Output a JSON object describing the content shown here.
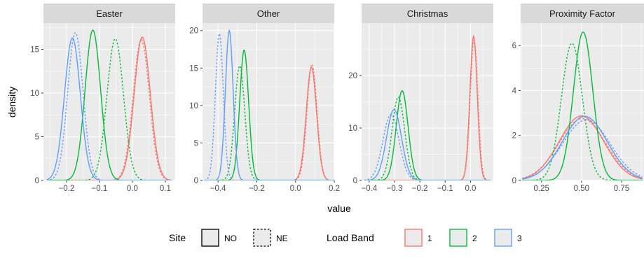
{
  "chart_data": {
    "type": "line",
    "subtype": "density",
    "xlabel": "value",
    "ylabel": "density",
    "legend_position": "bottom",
    "legend": {
      "site_title": "Site",
      "site_items": [
        {
          "label": "NO",
          "linetype": "solid"
        },
        {
          "label": "NE",
          "linetype": "dotted"
        }
      ],
      "band_title": "Load Band",
      "band_items": [
        {
          "label": "1",
          "color": "#F8766D"
        },
        {
          "label": "2",
          "color": "#00BA38"
        },
        {
          "label": "3",
          "color": "#619CFF"
        }
      ]
    },
    "colors": {
      "1": "#F8766D",
      "2": "#00BA38",
      "3": "#619CFF",
      "panel": "#EBEBEB",
      "strip": "#D9D9D9",
      "grid": "#FFFFFF"
    },
    "panels": [
      {
        "title": "Easter",
        "xlim": [
          -0.27,
          0.13
        ],
        "ylim": [
          0,
          18
        ],
        "xticks": [
          -0.2,
          -0.1,
          0.0,
          0.1
        ],
        "xtick_labels": [
          "−0.2",
          "−0.1",
          "0.0",
          "0.1"
        ],
        "yticks": [
          0,
          5,
          10,
          15
        ],
        "ytick_labels": [
          "0",
          "5",
          "10",
          "15"
        ],
        "series": [
          {
            "band": "1",
            "site": "NO",
            "x": [
              -0.26,
              0.007,
              0.03,
              0.053,
              0.12
            ],
            "y": [
              0,
              0,
              16.4,
              0,
              0
            ],
            "sd": 0.0245
          },
          {
            "band": "1",
            "site": "NE",
            "x": [
              -0.26,
              0.004,
              0.027,
              0.05,
              0.12
            ],
            "y": [
              0,
              0,
              16.1,
              0,
              0
            ],
            "sd": 0.0245
          },
          {
            "band": "2",
            "site": "NO",
            "x": [
              -0.26,
              -0.143,
              -0.12,
              -0.097,
              0.12
            ],
            "y": [
              0,
              0,
              17.2,
              0,
              0
            ],
            "sd": 0.0235
          },
          {
            "band": "2",
            "site": "NE",
            "x": [
              -0.26,
              -0.076,
              -0.052,
              -0.028,
              0.12
            ],
            "y": [
              0,
              0,
              16.2,
              0,
              0
            ],
            "sd": 0.025
          },
          {
            "band": "3",
            "site": "NO",
            "x": [
              -0.26,
              -0.205,
              -0.182,
              -0.159,
              0.12
            ],
            "y": [
              0,
              0,
              16.3,
              0,
              0
            ],
            "sd": 0.024
          },
          {
            "band": "3",
            "site": "NE",
            "x": [
              -0.26,
              -0.196,
              -0.173,
              -0.15,
              0.12
            ],
            "y": [
              0,
              0,
              16.9,
              0,
              0
            ],
            "sd": 0.0232
          }
        ]
      },
      {
        "title": "Other",
        "xlim": [
          -0.48,
          0.2
        ],
        "ylim": [
          0,
          21
        ],
        "xticks": [
          -0.4,
          -0.2,
          0.0,
          0.2
        ],
        "xtick_labels": [
          "−0.4",
          "−0.2",
          "0.0",
          "0.2"
        ],
        "yticks": [
          0,
          5,
          10,
          15,
          20
        ],
        "ytick_labels": [
          "0",
          "5",
          "10",
          "15",
          "20"
        ],
        "series": [
          {
            "band": "1",
            "site": "NO",
            "x": [
              -0.47,
              0.051,
              0.082,
              0.113,
              0.2
            ],
            "y": [
              0,
              0,
              15.1,
              0,
              0
            ],
            "sd": 0.0265
          },
          {
            "band": "1",
            "site": "NE",
            "x": [
              -0.47,
              0.054,
              0.085,
              0.116,
              0.2
            ],
            "y": [
              0,
              0,
              15.5,
              0,
              0
            ],
            "sd": 0.0258
          },
          {
            "band": "2",
            "site": "NO",
            "x": [
              -0.47,
              -0.292,
              -0.265,
              -0.238,
              0.2
            ],
            "y": [
              0,
              0,
              17.4,
              0,
              0
            ],
            "sd": 0.023
          },
          {
            "band": "2",
            "site": "NE",
            "x": [
              -0.47,
              -0.315,
              -0.288,
              -0.261,
              0.2
            ],
            "y": [
              0,
              0,
              15.3,
              0,
              0
            ],
            "sd": 0.026
          },
          {
            "band": "3",
            "site": "NO",
            "x": [
              -0.47,
              -0.362,
              -0.342,
              -0.322,
              0.2
            ],
            "y": [
              0,
              0,
              20.0,
              0,
              0
            ],
            "sd": 0.02
          },
          {
            "band": "3",
            "site": "NE",
            "x": [
              -0.47,
              -0.412,
              -0.393,
              -0.374,
              0.2
            ],
            "y": [
              0,
              0,
              19.6,
              0,
              0
            ],
            "sd": 0.0204
          }
        ]
      },
      {
        "title": "Christmas",
        "xlim": [
          -0.43,
          0.09
        ],
        "ylim": [
          0,
          30
        ],
        "xticks": [
          -0.4,
          -0.3,
          -0.2,
          -0.1,
          0.0
        ],
        "xtick_labels": [
          "−0.4",
          "−0.3",
          "−0.2",
          "−0.1",
          "0.0"
        ],
        "yticks": [
          0,
          10,
          20
        ],
        "ytick_labels": [
          "0",
          "10",
          "20"
        ],
        "series": [
          {
            "band": "1",
            "site": "NO",
            "x": [
              -0.42,
              -0.003,
              0.012,
              0.027,
              0.08
            ],
            "y": [
              0,
              0,
              27.5,
              0,
              0
            ],
            "sd": 0.0145
          },
          {
            "band": "1",
            "site": "NE",
            "x": [
              -0.42,
              -0.001,
              0.014,
              0.029,
              0.08
            ],
            "y": [
              0,
              0,
              26.8,
              0,
              0
            ],
            "sd": 0.0149
          },
          {
            "band": "2",
            "site": "NO",
            "x": [
              -0.42,
              -0.294,
              -0.27,
              -0.246,
              0.08
            ],
            "y": [
              0,
              0,
              17.1,
              0,
              0
            ],
            "sd": 0.0233
          },
          {
            "band": "2",
            "site": "NE",
            "x": [
              -0.42,
              -0.309,
              -0.285,
              -0.261,
              0.08
            ],
            "y": [
              0,
              0,
              15.9,
              0,
              0
            ],
            "sd": 0.025
          },
          {
            "band": "3",
            "site": "NO",
            "x": [
              -0.42,
              -0.329,
              -0.302,
              -0.275,
              0.08
            ],
            "y": [
              0,
              0,
              13.5,
              0,
              0
            ],
            "sd": 0.0296
          },
          {
            "band": "3",
            "site": "NE",
            "x": [
              -0.42,
              -0.341,
              -0.314,
              -0.287,
              0.08
            ],
            "y": [
              0,
              0,
              12.6,
              0,
              0
            ],
            "sd": 0.0317
          }
        ]
      },
      {
        "title": "Proximity Factor",
        "xlim": [
          0.12,
          0.89
        ],
        "ylim": [
          0,
          7
        ],
        "xticks": [
          0.25,
          0.5,
          0.75
        ],
        "xtick_labels": [
          "0.25",
          "0.50",
          "0.75"
        ],
        "yticks": [
          0,
          2,
          4,
          6
        ],
        "ytick_labels": [
          "0",
          "2",
          "4",
          "6"
        ],
        "series": [
          {
            "band": "1",
            "site": "NO",
            "x": [
              0.13,
              0.36,
              0.5,
              0.64,
              0.88
            ],
            "y": [
              0,
              0,
              2.87,
              0,
              0
            ],
            "sd": 0.139
          },
          {
            "band": "1",
            "site": "NE",
            "x": [
              0.13,
              0.37,
              0.505,
              0.64,
              0.88
            ],
            "y": [
              0,
              0,
              2.75,
              0,
              0
            ],
            "sd": 0.145
          },
          {
            "band": "2",
            "site": "NO",
            "x": [
              0.13,
              0.45,
              0.51,
              0.57,
              0.88
            ],
            "y": [
              0,
              0,
              6.6,
              0,
              0
            ],
            "sd": 0.0605
          },
          {
            "band": "2",
            "site": "NE",
            "x": [
              0.13,
              0.375,
              0.44,
              0.505,
              0.88
            ],
            "y": [
              0,
              0,
              6.1,
              0,
              0
            ],
            "sd": 0.0654
          },
          {
            "band": "3",
            "site": "NO",
            "x": [
              0.13,
              0.38,
              0.52,
              0.66,
              0.88
            ],
            "y": [
              0,
              0,
              2.85,
              0,
              0
            ],
            "sd": 0.14
          },
          {
            "band": "3",
            "site": "NE",
            "x": [
              0.13,
              0.39,
              0.53,
              0.67,
              0.88
            ],
            "y": [
              0,
              0,
              2.7,
              0,
              0
            ],
            "sd": 0.148
          }
        ]
      }
    ]
  }
}
